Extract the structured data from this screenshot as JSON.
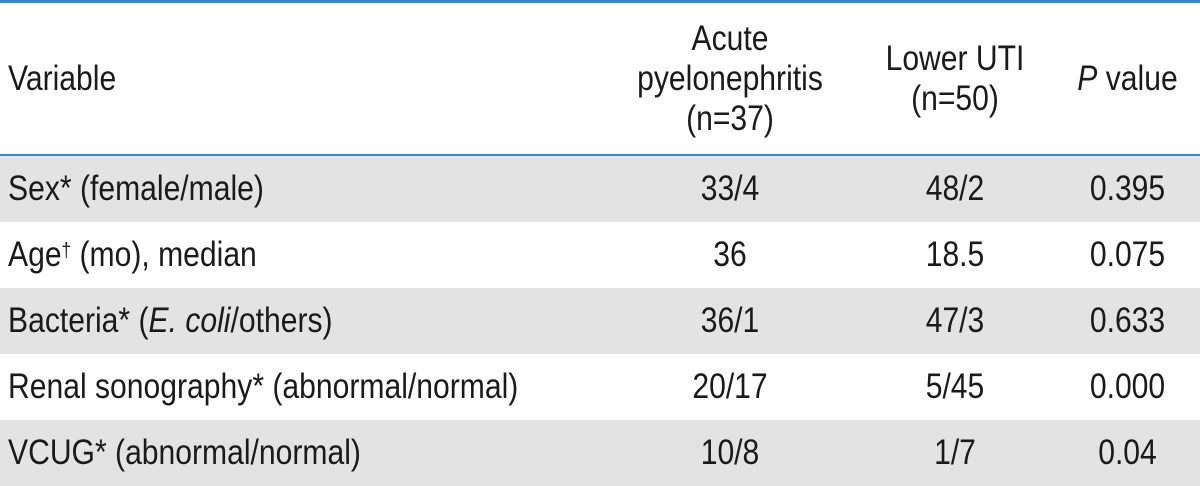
{
  "header": {
    "variable": "Variable",
    "acute_line1": "Acute",
    "acute_line2": "pyelonephritis",
    "acute_line3": "(n=37)",
    "lower_line1": "Lower UTI",
    "lower_line2": "(n=50)",
    "p_italic": "P",
    "p_rest": " value"
  },
  "rows": [
    {
      "variable": "Sex* (female/male)",
      "acute": "33/4",
      "lower": "48/2",
      "p": "0.395"
    },
    {
      "variable_pre": "Age",
      "variable_sup": "†",
      "variable_post": " (mo), median",
      "acute": "36",
      "lower": "18.5",
      "p": "0.075"
    },
    {
      "variable_pre": "Bacteria* (",
      "variable_italic": "E. coli",
      "variable_post": "/others)",
      "acute": "36/1",
      "lower": "47/3",
      "p": "0.633"
    },
    {
      "variable": "Renal sonography* (abnormal/normal)",
      "acute": "20/17",
      "lower": "5/45",
      "p": "0.000"
    },
    {
      "variable": "VCUG* (abnormal/normal)",
      "acute": "10/8",
      "lower": "1/7",
      "p": "0.04"
    }
  ],
  "colors": {
    "rule": "#3a86c8",
    "shade": "#e3e3e3"
  }
}
